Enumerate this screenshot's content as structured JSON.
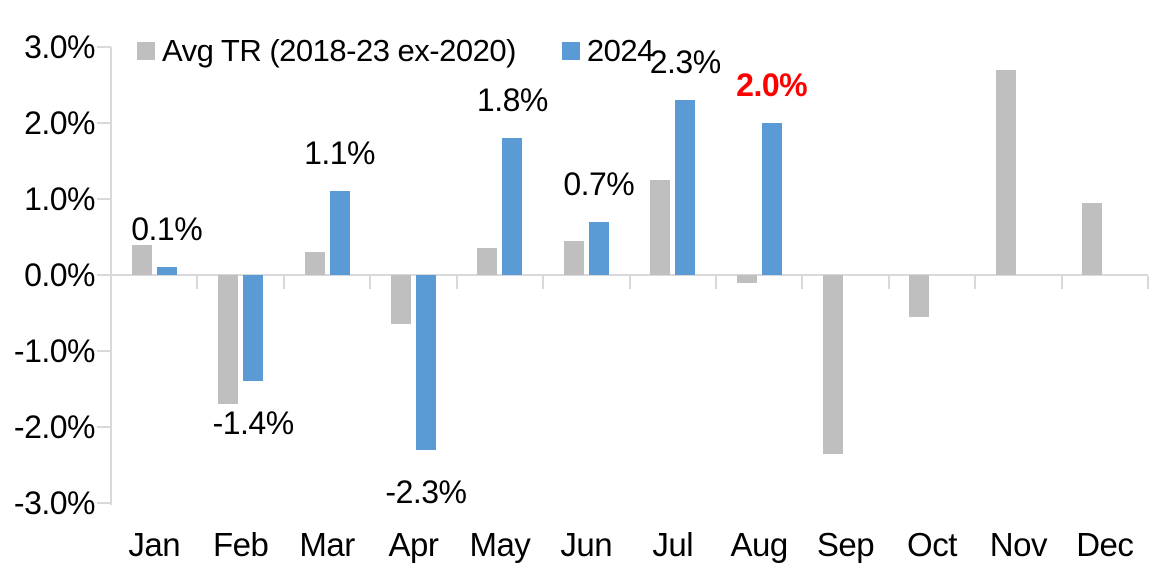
{
  "legend": {
    "avg_label": "Avg TR (2018-23 ex-2020)",
    "y2024_label": "2024"
  },
  "colors": {
    "avg_series": "#BFBFBF",
    "y2024_series": "#5B9BD5",
    "axis": "#D9D9D9",
    "text": "#000000",
    "highlight_label": "#FF0000"
  },
  "chart_data": {
    "type": "bar",
    "title": "",
    "xlabel": "",
    "ylabel": "",
    "categories": [
      "Jan",
      "Feb",
      "Mar",
      "Apr",
      "May",
      "Jun",
      "Jul",
      "Aug",
      "Sep",
      "Oct",
      "Nov",
      "Dec"
    ],
    "series": [
      {
        "name": "Avg TR (2018-23 ex-2020)",
        "color": "#BFBFBF",
        "values": [
          0.4,
          -1.7,
          0.3,
          -0.65,
          0.35,
          0.45,
          1.25,
          -0.1,
          -2.35,
          -0.55,
          2.7,
          0.95
        ]
      },
      {
        "name": "2024",
        "color": "#5B9BD5",
        "values": [
          0.1,
          -1.4,
          1.1,
          -2.3,
          1.8,
          0.7,
          2.3,
          2.0,
          null,
          null,
          null,
          null
        ],
        "data_labels": [
          "0.1%",
          "-1.4%",
          "1.1%",
          "-2.3%",
          "1.8%",
          "0.7%",
          "2.3%",
          "2.0%",
          null,
          null,
          null,
          null
        ],
        "highlighted_label_index": 7,
        "highlighted_label": "2.0%"
      }
    ],
    "ylim": [
      -3.0,
      3.0
    ],
    "ytick_labels": [
      "3.0%",
      "2.0%",
      "1.0%",
      "0.0%",
      "-1.0%",
      "-2.0%",
      "-3.0%"
    ],
    "ytick_values": [
      3,
      2,
      1,
      0,
      -1,
      -2,
      -3
    ],
    "legend_position": "top",
    "grid": "off"
  }
}
